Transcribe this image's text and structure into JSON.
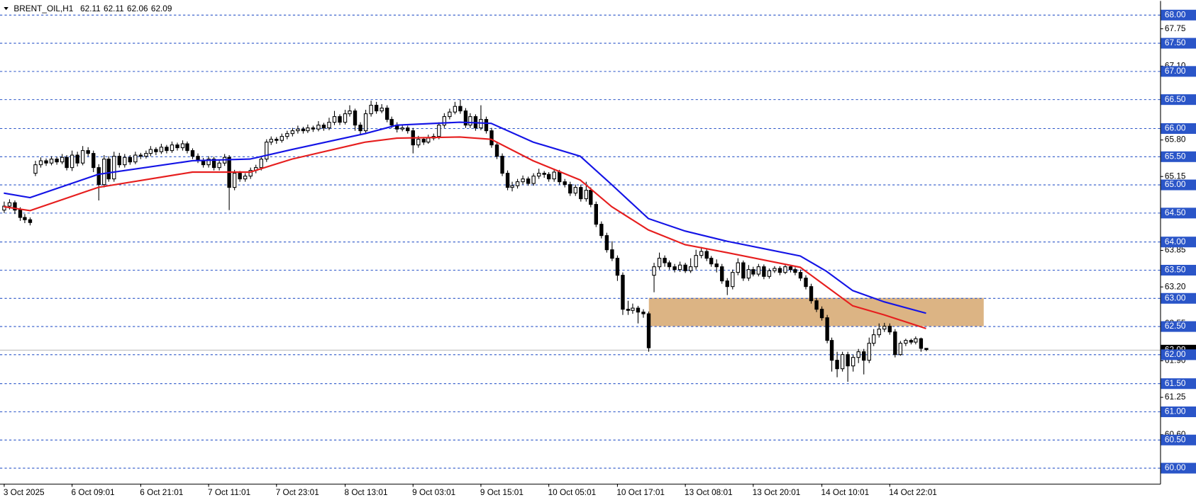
{
  "chart_data": {
    "type": "candlestick",
    "symbol": "BRENT_OIL,H1",
    "bull_color": "#ffffff",
    "bear_color": "#000000",
    "candles": [
      [
        64.55,
        64.7,
        64.5,
        64.62
      ],
      [
        64.62,
        64.74,
        64.56,
        64.68
      ],
      [
        64.68,
        64.72,
        64.48,
        64.55
      ],
      [
        64.55,
        64.6,
        64.36,
        64.42
      ],
      [
        64.42,
        64.48,
        64.32,
        64.38
      ],
      [
        64.38,
        64.42,
        64.28,
        64.33
      ],
      [
        65.2,
        65.42,
        65.15,
        65.35
      ],
      [
        65.35,
        65.48,
        65.3,
        65.42
      ],
      [
        65.42,
        65.46,
        65.33,
        65.38
      ],
      [
        65.38,
        65.5,
        65.34,
        65.45
      ],
      [
        65.45,
        65.49,
        65.35,
        65.4
      ],
      [
        65.4,
        65.54,
        65.36,
        65.48
      ],
      [
        65.48,
        65.52,
        65.25,
        65.3
      ],
      [
        65.3,
        65.6,
        65.24,
        65.52
      ],
      [
        65.52,
        65.58,
        65.32,
        65.38
      ],
      [
        65.38,
        65.68,
        65.34,
        65.6
      ],
      [
        65.6,
        65.66,
        65.5,
        65.55
      ],
      [
        65.55,
        65.6,
        65.22,
        65.3
      ],
      [
        65.3,
        65.36,
        64.72,
        65.0
      ],
      [
        65.0,
        65.52,
        64.95,
        65.45
      ],
      [
        65.45,
        65.5,
        65.05,
        65.1
      ],
      [
        65.1,
        65.58,
        65.05,
        65.5
      ],
      [
        65.5,
        65.56,
        65.3,
        65.35
      ],
      [
        65.35,
        65.54,
        65.3,
        65.48
      ],
      [
        65.48,
        65.52,
        65.35,
        65.4
      ],
      [
        65.4,
        65.58,
        65.36,
        65.52
      ],
      [
        65.52,
        65.56,
        65.45,
        65.5
      ],
      [
        65.5,
        65.6,
        65.46,
        65.55
      ],
      [
        65.55,
        65.68,
        65.5,
        65.62
      ],
      [
        65.62,
        65.66,
        65.52,
        65.58
      ],
      [
        65.58,
        65.72,
        65.54,
        65.66
      ],
      [
        65.66,
        65.7,
        65.55,
        65.6
      ],
      [
        65.6,
        65.76,
        65.56,
        65.7
      ],
      [
        65.7,
        65.74,
        65.6,
        65.65
      ],
      [
        65.65,
        65.78,
        65.6,
        65.72
      ],
      [
        65.72,
        65.76,
        65.55,
        65.6
      ],
      [
        65.6,
        65.64,
        65.45,
        65.5
      ],
      [
        65.5,
        65.55,
        65.38,
        65.42
      ],
      [
        65.42,
        65.47,
        65.3,
        65.35
      ],
      [
        65.35,
        65.5,
        65.3,
        65.45
      ],
      [
        65.45,
        65.49,
        65.25,
        65.3
      ],
      [
        65.3,
        65.44,
        65.25,
        65.38
      ],
      [
        65.38,
        65.54,
        65.33,
        65.48
      ],
      [
        65.48,
        65.52,
        64.55,
        64.95
      ],
      [
        64.95,
        65.26,
        64.9,
        65.2
      ],
      [
        65.2,
        65.24,
        65.05,
        65.1
      ],
      [
        65.1,
        65.2,
        65.05,
        65.15
      ],
      [
        65.15,
        65.3,
        65.1,
        65.25
      ],
      [
        65.25,
        65.35,
        65.2,
        65.3
      ],
      [
        65.3,
        65.5,
        65.25,
        65.45
      ],
      [
        65.45,
        65.8,
        65.4,
        65.75
      ],
      [
        65.75,
        65.85,
        65.7,
        65.8
      ],
      [
        65.8,
        65.84,
        65.72,
        65.78
      ],
      [
        65.78,
        65.9,
        65.74,
        65.85
      ],
      [
        65.85,
        65.95,
        65.8,
        65.9
      ],
      [
        65.9,
        66.0,
        65.85,
        65.95
      ],
      [
        65.95,
        66.04,
        65.9,
        65.98
      ],
      [
        65.98,
        66.02,
        65.9,
        65.95
      ],
      [
        65.95,
        66.06,
        65.91,
        66.0
      ],
      [
        66.0,
        66.04,
        65.93,
        65.98
      ],
      [
        65.98,
        66.12,
        65.94,
        66.05
      ],
      [
        66.05,
        66.09,
        65.95,
        66.0
      ],
      [
        66.0,
        66.18,
        65.96,
        66.1
      ],
      [
        66.1,
        66.3,
        66.05,
        66.2
      ],
      [
        66.2,
        66.24,
        66.05,
        66.1
      ],
      [
        66.1,
        66.32,
        66.06,
        66.25
      ],
      [
        66.25,
        66.4,
        66.2,
        66.3
      ],
      [
        66.3,
        66.34,
        65.95,
        66.05
      ],
      [
        66.05,
        66.1,
        65.88,
        65.95
      ],
      [
        65.95,
        66.32,
        65.9,
        66.25
      ],
      [
        66.25,
        66.48,
        66.2,
        66.4
      ],
      [
        66.4,
        66.46,
        66.25,
        66.3
      ],
      [
        66.3,
        66.42,
        66.26,
        66.35
      ],
      [
        66.35,
        66.4,
        66.1,
        66.15
      ],
      [
        66.15,
        66.2,
        66.0,
        66.05
      ],
      [
        66.05,
        66.1,
        65.92,
        65.98
      ],
      [
        65.98,
        66.05,
        65.94,
        66.0
      ],
      [
        66.0,
        66.04,
        65.9,
        65.95
      ],
      [
        65.95,
        66.0,
        65.55,
        65.7
      ],
      [
        65.7,
        65.86,
        65.65,
        65.8
      ],
      [
        65.8,
        65.84,
        65.7,
        65.75
      ],
      [
        65.75,
        65.88,
        65.72,
        65.82
      ],
      [
        65.82,
        65.9,
        65.78,
        65.85
      ],
      [
        65.85,
        66.1,
        65.8,
        66.05
      ],
      [
        66.05,
        66.26,
        66.0,
        66.2
      ],
      [
        66.2,
        66.34,
        66.15,
        66.28
      ],
      [
        66.28,
        66.46,
        66.24,
        66.38
      ],
      [
        66.38,
        66.5,
        66.25,
        66.3
      ],
      [
        66.3,
        66.35,
        66.0,
        66.05
      ],
      [
        66.05,
        66.26,
        66.0,
        66.2
      ],
      [
        66.2,
        66.24,
        65.95,
        66.0
      ],
      [
        66.0,
        66.4,
        65.96,
        66.15
      ],
      [
        66.15,
        66.2,
        65.9,
        65.95
      ],
      [
        65.95,
        66.0,
        65.65,
        65.7
      ],
      [
        65.7,
        65.75,
        65.45,
        65.5
      ],
      [
        65.5,
        65.55,
        65.15,
        65.2
      ],
      [
        65.2,
        65.25,
        64.9,
        64.95
      ],
      [
        64.95,
        65.05,
        64.88,
        64.98
      ],
      [
        64.98,
        65.1,
        64.93,
        65.05
      ],
      [
        65.05,
        65.16,
        65.0,
        65.1
      ],
      [
        65.1,
        65.14,
        64.98,
        65.02
      ],
      [
        65.02,
        65.2,
        64.98,
        65.15
      ],
      [
        65.15,
        65.28,
        65.1,
        65.2
      ],
      [
        65.2,
        65.24,
        65.12,
        65.18
      ],
      [
        65.18,
        65.22,
        65.05,
        65.1
      ],
      [
        65.1,
        65.28,
        65.05,
        65.22
      ],
      [
        65.22,
        65.26,
        65.0,
        65.05
      ],
      [
        65.05,
        65.1,
        64.95,
        65.0
      ],
      [
        65.0,
        65.05,
        64.8,
        64.85
      ],
      [
        64.85,
        65.0,
        64.8,
        64.95
      ],
      [
        64.95,
        65.0,
        64.7,
        64.75
      ],
      [
        64.75,
        65.05,
        64.7,
        64.9
      ],
      [
        64.9,
        64.95,
        64.6,
        64.65
      ],
      [
        64.65,
        64.7,
        64.25,
        64.3
      ],
      [
        64.3,
        64.35,
        64.05,
        64.1
      ],
      [
        64.1,
        64.15,
        63.8,
        63.85
      ],
      [
        63.85,
        64.0,
        63.65,
        63.7
      ],
      [
        63.7,
        63.75,
        63.3,
        63.4
      ],
      [
        63.4,
        63.45,
        62.7,
        62.8
      ],
      [
        62.8,
        62.95,
        62.7,
        62.78
      ],
      [
        62.78,
        62.9,
        62.72,
        62.82
      ],
      [
        62.82,
        62.86,
        62.55,
        62.75
      ],
      [
        62.75,
        62.8,
        62.65,
        62.72
      ],
      [
        62.72,
        62.76,
        62.05,
        62.12
      ],
      [
        63.4,
        63.62,
        63.1,
        63.55
      ],
      [
        63.55,
        63.8,
        63.5,
        63.7
      ],
      [
        63.7,
        63.75,
        63.55,
        63.62
      ],
      [
        63.62,
        63.66,
        63.5,
        63.55
      ],
      [
        63.55,
        63.6,
        63.45,
        63.5
      ],
      [
        63.5,
        63.64,
        63.46,
        63.58
      ],
      [
        63.58,
        63.62,
        63.44,
        63.48
      ],
      [
        63.48,
        63.7,
        63.44,
        63.55
      ],
      [
        63.55,
        63.85,
        63.5,
        63.75
      ],
      [
        63.75,
        63.9,
        63.7,
        63.82
      ],
      [
        63.82,
        63.86,
        63.65,
        63.7
      ],
      [
        63.7,
        63.74,
        63.55,
        63.6
      ],
      [
        63.6,
        63.68,
        63.45,
        63.55
      ],
      [
        63.55,
        63.6,
        63.25,
        63.3
      ],
      [
        63.3,
        63.35,
        63.05,
        63.2
      ],
      [
        63.2,
        63.5,
        63.15,
        63.45
      ],
      [
        63.45,
        63.7,
        63.4,
        63.62
      ],
      [
        63.62,
        63.66,
        63.3,
        63.35
      ],
      [
        63.35,
        63.58,
        63.3,
        63.5
      ],
      [
        63.5,
        63.55,
        63.38,
        63.42
      ],
      [
        63.42,
        63.6,
        63.38,
        63.55
      ],
      [
        63.55,
        63.59,
        63.33,
        63.38
      ],
      [
        63.38,
        63.52,
        63.34,
        63.48
      ],
      [
        63.48,
        63.56,
        63.44,
        63.52
      ],
      [
        63.52,
        63.56,
        63.4,
        63.45
      ],
      [
        63.45,
        63.6,
        63.42,
        63.55
      ],
      [
        63.55,
        63.58,
        63.45,
        63.5
      ],
      [
        63.5,
        63.54,
        63.4,
        63.45
      ],
      [
        63.45,
        63.5,
        63.3,
        63.35
      ],
      [
        63.35,
        63.4,
        63.15,
        63.2
      ],
      [
        63.2,
        63.25,
        62.9,
        62.95
      ],
      [
        62.95,
        63.0,
        62.75,
        62.8
      ],
      [
        62.8,
        62.85,
        62.6,
        62.65
      ],
      [
        62.65,
        62.7,
        62.2,
        62.25
      ],
      [
        62.25,
        62.3,
        61.7,
        61.9
      ],
      [
        61.9,
        62.05,
        61.6,
        61.75
      ],
      [
        61.75,
        62.05,
        61.7,
        62.0
      ],
      [
        62.0,
        62.05,
        61.52,
        61.8
      ],
      [
        61.8,
        62.0,
        61.7,
        61.95
      ],
      [
        61.95,
        62.1,
        61.85,
        62.05
      ],
      [
        62.05,
        62.1,
        61.65,
        61.9
      ],
      [
        61.9,
        62.3,
        61.85,
        62.2
      ],
      [
        62.2,
        62.45,
        62.15,
        62.35
      ],
      [
        62.35,
        62.55,
        62.3,
        62.45
      ],
      [
        62.45,
        62.56,
        62.4,
        62.5
      ],
      [
        62.5,
        62.55,
        62.35,
        62.4
      ],
      [
        62.4,
        62.45,
        61.95,
        62.0
      ],
      [
        62.0,
        62.24,
        61.98,
        62.2
      ],
      [
        62.2,
        62.28,
        62.15,
        62.25
      ],
      [
        62.25,
        62.28,
        62.18,
        62.22
      ],
      [
        62.22,
        62.32,
        62.18,
        62.28
      ],
      [
        62.28,
        62.3,
        62.05,
        62.11
      ],
      [
        62.11,
        62.11,
        62.06,
        62.09
      ]
    ],
    "series": [
      {
        "color": "#1414e6",
        "x": [
          0,
          5,
          18,
          36,
          47,
          55,
          69,
          75,
          87,
          93,
          101,
          110,
          116,
          123,
          130,
          138,
          145,
          152,
          157,
          162,
          168,
          176
        ],
        "values": [
          64.85,
          64.77,
          65.18,
          65.42,
          65.45,
          65.62,
          65.9,
          66.05,
          66.1,
          66.08,
          65.75,
          65.5,
          65.0,
          64.4,
          64.18,
          64.0,
          63.87,
          63.74,
          63.47,
          63.13,
          62.93,
          62.73
        ]
      },
      {
        "color": "#e61e1e",
        "x": [
          0,
          5,
          18,
          36,
          47,
          55,
          69,
          75,
          87,
          93,
          101,
          110,
          116,
          123,
          130,
          138,
          145,
          152,
          157,
          162,
          168,
          176
        ],
        "values": [
          64.61,
          64.54,
          64.95,
          65.22,
          65.22,
          65.45,
          65.75,
          65.82,
          65.84,
          65.8,
          65.42,
          65.08,
          64.61,
          64.2,
          63.94,
          63.8,
          63.67,
          63.54,
          63.2,
          62.86,
          62.7,
          62.46
        ]
      }
    ],
    "zones": [
      {
        "x": [
          123.1,
          187
        ],
        "y": [
          62.5,
          63.0
        ],
        "color": "#dcb484"
      }
    ],
    "xlim": [
      -0.73,
      220.67
    ],
    "xticks": [
      {
        "value": 0,
        "label": "3 Oct 2025"
      },
      {
        "value": 13,
        "label": "6 Oct 09:01"
      },
      {
        "value": 26,
        "label": "6 Oct 21:01"
      },
      {
        "value": 39,
        "label": "7 Oct 11:01"
      },
      {
        "value": 52,
        "label": "7 Oct 23:01"
      },
      {
        "value": 65,
        "label": "8 Oct 13:01"
      },
      {
        "value": 78,
        "label": "9 Oct 03:01"
      },
      {
        "value": 91,
        "label": "9 Oct 15:01"
      },
      {
        "value": 104,
        "label": "10 Oct 05:01"
      },
      {
        "value": 117,
        "label": "10 Oct 17:01"
      },
      {
        "value": 130,
        "label": "13 Oct 08:01"
      },
      {
        "value": 143,
        "label": "13 Oct 20:01"
      },
      {
        "value": 156,
        "label": "14 Oct 10:01"
      },
      {
        "value": 169,
        "label": "14 Oct 22:01"
      }
    ],
    "ylim": [
      59.72,
      68.24
    ],
    "yticks": [
      67.75,
      {
        "value": 67.1,
        "label": "67.10"
      },
      {
        "value": 65.8,
        "label": "65.80"
      },
      65.15,
      63.85,
      {
        "value": 63.2,
        "label": "63.20"
      },
      62.55,
      {
        "value": 61.9,
        "label": "61.90"
      },
      61.25,
      {
        "value": 60.6,
        "label": "60.60"
      }
    ],
    "level_color": "#2a55c8",
    "levels": [
      {
        "value": 68,
        "label": "68.00"
      },
      {
        "value": 67.5,
        "label": "67.50"
      },
      {
        "value": 67,
        "label": "67.00"
      },
      {
        "value": 66.5,
        "label": "66.50"
      },
      {
        "value": 66,
        "label": "66.00"
      },
      {
        "value": 65.5,
        "label": "65.50"
      },
      {
        "value": 65,
        "label": "65.00"
      },
      {
        "value": 64.5,
        "label": "64.50"
      },
      {
        "value": 64,
        "label": "64.00"
      },
      {
        "value": 63.5,
        "label": "63.50"
      },
      {
        "value": 63,
        "label": "63.00"
      },
      {
        "value": 62.5,
        "label": "62.50"
      },
      {
        "value": 62,
        "label": "62.00"
      },
      {
        "value": 61.5,
        "label": "61.50"
      },
      {
        "value": 61,
        "label": "61.00"
      },
      {
        "value": 60.5,
        "label": "60.50"
      },
      {
        "value": 60,
        "label": "60.00"
      }
    ]
  }
}
